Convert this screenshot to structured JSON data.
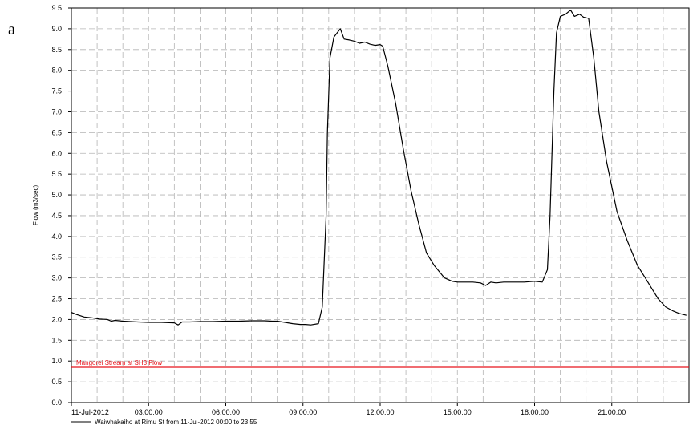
{
  "panel_label": "a",
  "chart_data": {
    "type": "line",
    "title": "",
    "xlabel": "",
    "ylabel": "Flow (m3/sec)",
    "ylim": [
      0,
      9.5
    ],
    "yticks": [
      0.0,
      0.5,
      1.0,
      1.5,
      2.0,
      2.5,
      3.0,
      3.5,
      4.0,
      4.5,
      5.0,
      5.5,
      6.0,
      6.5,
      7.0,
      7.5,
      8.0,
      8.5,
      9.0,
      9.5
    ],
    "ytick_labels": [
      "0.0",
      "0.5",
      "1.0",
      "1.5",
      "2.0",
      "2.5",
      "3.0",
      "3.5",
      "4.0",
      "4.5",
      "5.0",
      "5.5",
      "6.0",
      "6.5",
      "7.0",
      "7.5",
      "8.0",
      "8.5",
      "9.0",
      "9.5"
    ],
    "xlim_hours": [
      0,
      24
    ],
    "xticks_hours": [
      0,
      3,
      6,
      9,
      12,
      15,
      18,
      21
    ],
    "xtick_labels": [
      "11-Jul-2012",
      "03:00:00",
      "06:00:00",
      "09:00:00",
      "12:00:00",
      "15:00:00",
      "18:00:00",
      "21:00:00"
    ],
    "grid": true,
    "legend_position": "bottom-left",
    "reference_line": {
      "name": "Mangorei Stream at SH3 Flow",
      "y": 0.85,
      "color": "#e8141c"
    },
    "series": [
      {
        "name": "Waiwhakaiho at Rimu St from 11-Jul-2012 00:00 to 23:55",
        "color": "#000000",
        "x_hours": [
          0.0,
          0.2,
          0.5,
          0.8,
          1.1,
          1.4,
          1.55,
          1.7,
          2.0,
          2.3,
          2.6,
          3.0,
          3.5,
          4.0,
          4.15,
          4.3,
          4.6,
          5.0,
          5.5,
          6.0,
          6.5,
          7.0,
          7.5,
          7.8,
          8.0,
          8.3,
          8.6,
          8.9,
          9.1,
          9.3,
          9.6,
          9.75,
          9.9,
          9.95,
          10.05,
          10.2,
          10.35,
          10.45,
          10.6,
          10.8,
          11.0,
          11.2,
          11.4,
          11.6,
          11.8,
          12.0,
          12.1,
          12.3,
          12.6,
          12.9,
          13.2,
          13.5,
          13.8,
          14.1,
          14.5,
          14.8,
          15.0,
          15.3,
          15.6,
          15.9,
          16.1,
          16.3,
          16.5,
          16.8,
          17.2,
          17.6,
          18.0,
          18.3,
          18.5,
          18.6,
          18.75,
          18.85,
          19.0,
          19.2,
          19.4,
          19.55,
          19.75,
          19.9,
          20.1,
          20.3,
          20.5,
          20.8,
          21.2,
          21.6,
          22.0,
          22.3,
          22.6,
          22.8,
          23.1,
          23.4,
          23.6,
          23.9
        ],
        "values": [
          2.17,
          2.12,
          2.06,
          2.04,
          2.01,
          2.0,
          1.96,
          1.98,
          1.96,
          1.95,
          1.94,
          1.93,
          1.93,
          1.92,
          1.87,
          1.94,
          1.94,
          1.95,
          1.95,
          1.96,
          1.96,
          1.97,
          1.97,
          1.96,
          1.96,
          1.93,
          1.9,
          1.88,
          1.88,
          1.87,
          1.9,
          2.3,
          4.5,
          6.5,
          8.3,
          8.8,
          8.92,
          9.0,
          8.75,
          8.73,
          8.7,
          8.65,
          8.68,
          8.63,
          8.6,
          8.62,
          8.58,
          8.1,
          7.2,
          6.1,
          5.1,
          4.3,
          3.6,
          3.3,
          3.0,
          2.92,
          2.9,
          2.9,
          2.9,
          2.88,
          2.82,
          2.9,
          2.88,
          2.9,
          2.9,
          2.9,
          2.92,
          2.9,
          3.2,
          4.5,
          7.5,
          8.9,
          9.3,
          9.35,
          9.45,
          9.3,
          9.35,
          9.28,
          9.25,
          8.3,
          7.0,
          5.8,
          4.6,
          3.9,
          3.3,
          3.0,
          2.7,
          2.5,
          2.3,
          2.2,
          2.15,
          2.1
        ]
      }
    ]
  }
}
